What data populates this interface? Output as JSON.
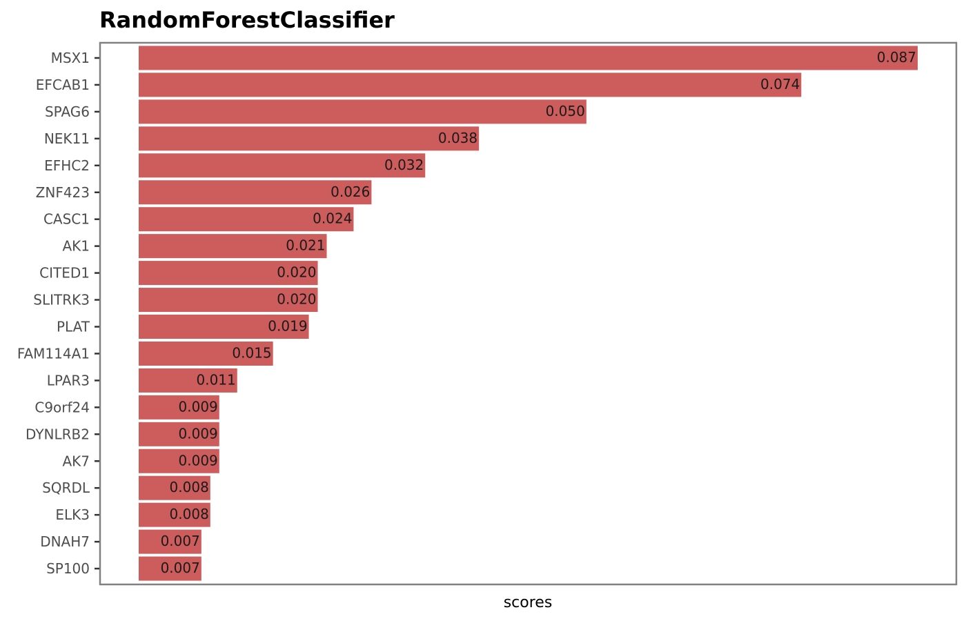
{
  "chart_data": {
    "type": "bar",
    "orientation": "horizontal",
    "title": "RandomForestClassifier",
    "xlabel": "scores",
    "ylabel": "",
    "categories": [
      "MSX1",
      "EFCAB1",
      "SPAG6",
      "NEK11",
      "EFHC2",
      "ZNF423",
      "CASC1",
      "AK1",
      "CITED1",
      "SLITRK3",
      "PLAT",
      "FAM114A1",
      "LPAR3",
      "C9orf24",
      "DYNLRB2",
      "AK7",
      "SQRDL",
      "ELK3",
      "DNAH7",
      "SP100"
    ],
    "values": [
      0.087,
      0.074,
      0.05,
      0.038,
      0.032,
      0.026,
      0.024,
      0.021,
      0.02,
      0.02,
      0.019,
      0.015,
      0.011,
      0.009,
      0.009,
      0.009,
      0.008,
      0.008,
      0.007,
      0.007
    ],
    "data_labels": [
      "0.087",
      "0.074",
      "0.050",
      "0.038",
      "0.032",
      "0.026",
      "0.024",
      "0.021",
      "0.020",
      "0.020",
      "0.019",
      "0.015",
      "0.011",
      "0.009",
      "0.009",
      "0.009",
      "0.008",
      "0.008",
      "0.007",
      "0.007"
    ],
    "xlim": [
      0,
      0.087
    ],
    "grid": false,
    "legend": "none",
    "bar_color": "#cd5c5c",
    "frame_color": "#808080"
  }
}
